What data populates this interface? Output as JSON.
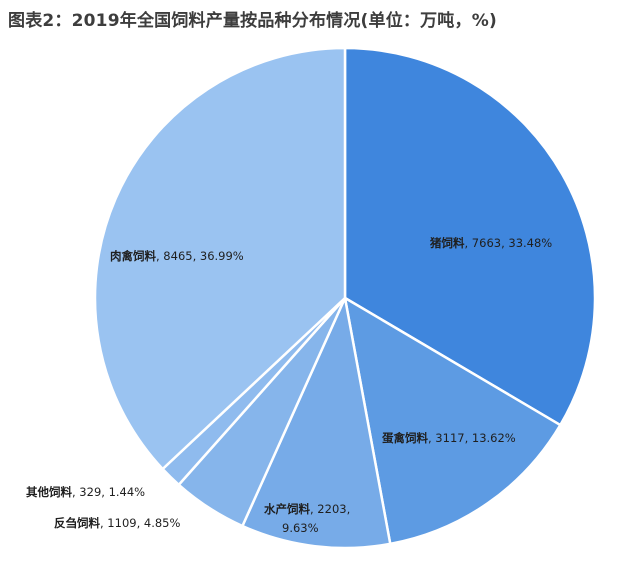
{
  "title": "图表2：2019年全国饲料产量按品种分布情况(单位：万吨，%)",
  "chart_data": {
    "type": "pie",
    "title": "图表2：2019年全国饲料产量按品种分布情况(单位：万吨，%)",
    "unit": "万吨，%",
    "slices": [
      {
        "name": "猪饲料",
        "value": 7663,
        "percent": "33.48%",
        "color": "#3f86dd"
      },
      {
        "name": "蛋禽饲料",
        "value": 3117,
        "percent": "13.62%",
        "color": "#5d9be3"
      },
      {
        "name": "水产饲料",
        "value": 2203,
        "percent": "9.63%",
        "color": "#77abe8"
      },
      {
        "name": "反刍饲料",
        "value": 1109,
        "percent": "4.85%",
        "color": "#86b5eb"
      },
      {
        "name": "其他饲料",
        "value": 329,
        "percent": "1.44%",
        "color": "#8fbbee"
      },
      {
        "name": "肉禽饲料",
        "value": 8465,
        "percent": "36.99%",
        "color": "#9ac3f1"
      }
    ]
  }
}
